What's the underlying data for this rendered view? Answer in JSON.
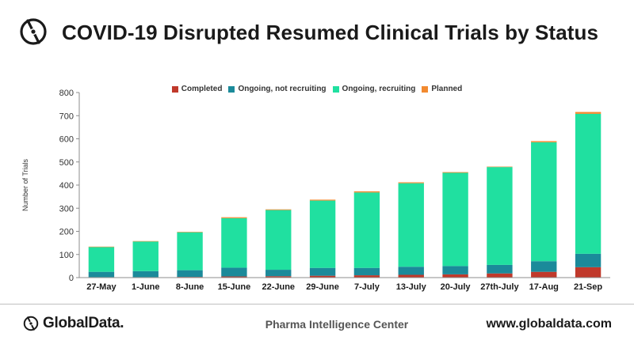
{
  "header": {
    "title": "COVID-19 Disrupted Resumed Clinical Trials by Status",
    "logo_icon": "globaldata-icon"
  },
  "chart_data": {
    "type": "bar",
    "stacked": true,
    "title": "COVID-19 Disrupted Resumed Clinical Trials by Status",
    "xlabel": "",
    "ylabel": "Number of Trials",
    "ylim": [
      0,
      800
    ],
    "yticks": [
      0,
      100,
      200,
      300,
      400,
      500,
      600,
      700,
      800
    ],
    "grid": false,
    "legend_position": "top",
    "categories": [
      "27-May",
      "1-June",
      "8-June",
      "15-June",
      "22-June",
      "29-June",
      "7-July",
      "13-July",
      "20-July",
      "27th-July",
      "17-Aug",
      "21-Sep"
    ],
    "series": [
      {
        "name": "Completed",
        "color": "#c0392b",
        "values": [
          2,
          2,
          3,
          5,
          6,
          8,
          10,
          12,
          14,
          18,
          25,
          45
        ]
      },
      {
        "name": "Ongoing, not recruiting",
        "color": "#1b8a9a",
        "values": [
          23,
          26,
          29,
          38,
          28,
          34,
          32,
          35,
          36,
          37,
          46,
          58
        ]
      },
      {
        "name": "Ongoing, recruiting",
        "color": "#20e0a0",
        "values": [
          107,
          128,
          164,
          214,
          258,
          291,
          326,
          361,
          403,
          423,
          514,
          605
        ]
      },
      {
        "name": "Planned",
        "color": "#f28a30",
        "values": [
          2,
          2,
          2,
          4,
          3,
          4,
          5,
          4,
          3,
          2,
          5,
          8
        ]
      }
    ]
  },
  "footer": {
    "brand": "GlobalData.",
    "center_text": "Pharma Intelligence Center",
    "url": "www.globaldata.com"
  }
}
